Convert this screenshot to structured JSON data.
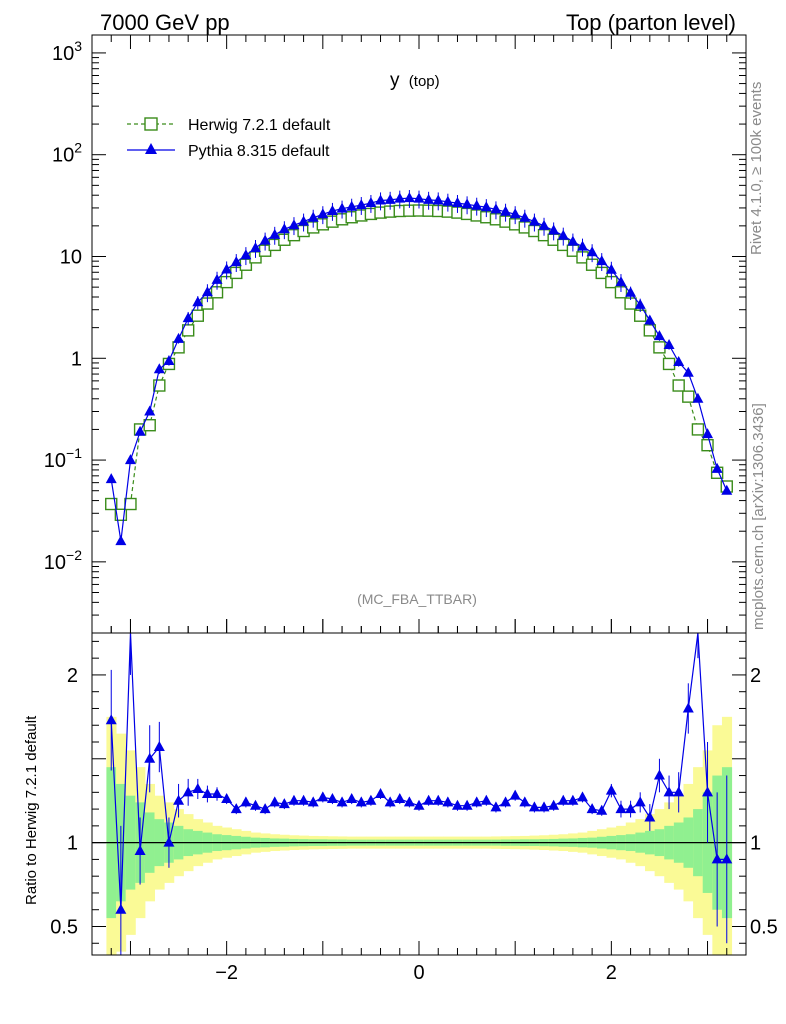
{
  "header": {
    "left": "7000 GeV pp",
    "right": "Top (parton level)"
  },
  "side": {
    "rivet": "Rivet 4.1.0, ≥ 100k events",
    "source": "mcplots.cern.ch [arXiv:1306.3436]"
  },
  "colors": {
    "herwig": "#3a8c1a",
    "pythia": "#0000e6",
    "band_inner": "#90f090",
    "band_outer": "#fafa96"
  },
  "chart_data": {
    "type": "line",
    "title": "y",
    "title_sub": "(top)",
    "analysis_tag": "(MC_FBA_TTBAR)",
    "xlabel": "",
    "xlim": [
      -3.4,
      3.4
    ],
    "xticks": [
      {
        "v": -2,
        "label": "−2"
      },
      {
        "v": 0,
        "label": "0"
      },
      {
        "v": 2,
        "label": "2"
      }
    ],
    "main": {
      "yscale": "log",
      "ylim": [
        0.002,
        1500
      ],
      "yticks": [
        {
          "v": 1000,
          "base": "10",
          "exp": "3"
        },
        {
          "v": 100,
          "base": "10",
          "exp": "2"
        },
        {
          "v": 10,
          "base": "10",
          "exp": ""
        },
        {
          "v": 1,
          "base": "1",
          "exp": ""
        },
        {
          "v": 0.1,
          "base": "10",
          "exp": "−1"
        },
        {
          "v": 0.01,
          "base": "10",
          "exp": "−2"
        }
      ]
    },
    "ratio": {
      "ylabel": "Ratio to Herwig 7.2.1 default",
      "ylim": [
        0.33,
        2.25
      ],
      "yticks": [
        {
          "v": 2,
          "label": "2"
        },
        {
          "v": 1,
          "label": "1"
        },
        {
          "v": 0.5,
          "label": "0.5"
        }
      ]
    },
    "legend": {
      "position": "top-left",
      "entries": [
        {
          "name": "Herwig 7.2.1 default",
          "marker": "open-square",
          "style": "dashed"
        },
        {
          "name": "Pythia 8.315 default",
          "marker": "filled-triangle",
          "style": "solid"
        }
      ]
    },
    "x": [
      -3.2,
      -3.1,
      -3.0,
      -2.9,
      -2.8,
      -2.7,
      -2.6,
      -2.5,
      -2.4,
      -2.3,
      -2.2,
      -2.1,
      -2.0,
      -1.9,
      -1.8,
      -1.7,
      -1.6,
      -1.5,
      -1.4,
      -1.3,
      -1.2,
      -1.1,
      -1.0,
      -0.9,
      -0.8,
      -0.7,
      -0.6,
      -0.5,
      -0.4,
      -0.3,
      -0.2,
      -0.1,
      0.0,
      0.1,
      0.2,
      0.3,
      0.4,
      0.5,
      0.6,
      0.7,
      0.8,
      0.9,
      1.0,
      1.1,
      1.2,
      1.3,
      1.4,
      1.5,
      1.6,
      1.7,
      1.8,
      1.9,
      2.0,
      2.1,
      2.2,
      2.3,
      2.4,
      2.5,
      2.6,
      2.7,
      2.8,
      2.9,
      3.0,
      3.1,
      3.2
    ],
    "series": [
      {
        "name": "Herwig 7.2.1 default",
        "values": [
          0.037,
          0.029,
          0.037,
          0.2,
          0.22,
          0.54,
          0.88,
          1.28,
          1.88,
          2.62,
          3.45,
          4.45,
          5.6,
          6.9,
          8.3,
          9.8,
          11.4,
          13.0,
          14.6,
          16.2,
          17.8,
          19.3,
          20.7,
          22.0,
          23.2,
          24.3,
          25.3,
          26.2,
          27.0,
          27.6,
          28.0,
          28.2,
          28.3,
          28.2,
          28.0,
          27.6,
          27.0,
          26.2,
          25.3,
          24.3,
          23.2,
          22.0,
          20.7,
          19.3,
          17.8,
          16.2,
          14.6,
          13.0,
          11.4,
          9.8,
          8.3,
          6.9,
          5.6,
          4.45,
          3.45,
          2.62,
          1.88,
          1.28,
          0.88,
          0.54,
          0.42,
          0.2,
          0.14,
          0.075,
          0.055
        ],
        "errors": [
          0.018,
          0.015,
          0.015,
          0.04,
          0.04,
          0.06,
          0.05,
          0.06,
          0.07,
          0.08,
          0.1,
          0.1,
          0.1,
          0.1,
          0.1,
          0.1,
          0.1,
          0.1,
          0.1,
          0.1,
          0.1,
          0.1,
          0.1,
          0.1,
          0.1,
          0.1,
          0.1,
          0.1,
          0.1,
          0.1,
          0.1,
          0.1,
          0.1,
          0.1,
          0.1,
          0.1,
          0.1,
          0.1,
          0.1,
          0.1,
          0.1,
          0.1,
          0.1,
          0.1,
          0.1,
          0.1,
          0.1,
          0.1,
          0.1,
          0.1,
          0.1,
          0.1,
          0.1,
          0.1,
          0.1,
          0.08,
          0.07,
          0.06,
          0.05,
          0.06,
          0.05,
          0.04,
          0.03,
          0.02,
          0.018
        ]
      },
      {
        "name": "Pythia 8.315 default",
        "values": [
          0.065,
          0.016,
          0.1,
          0.19,
          0.3,
          0.78,
          0.94,
          1.55,
          2.48,
          3.55,
          4.45,
          5.9,
          7.45,
          8.8,
          10.3,
          12.1,
          14.3,
          16.3,
          18.5,
          20.3,
          22.0,
          24.0,
          26.0,
          28.0,
          29.5,
          30.8,
          32.0,
          33.5,
          35.5,
          36.0,
          37.0,
          37.5,
          37.0,
          36.0,
          35.5,
          34.5,
          33.5,
          32.5,
          31.5,
          30.5,
          29.0,
          27.5,
          26.0,
          24.0,
          22.0,
          20.0,
          18.0,
          16.0,
          14.0,
          12.5,
          11.0,
          9.0,
          7.4,
          5.6,
          4.4,
          3.35,
          2.35,
          1.65,
          1.35,
          0.92,
          0.72,
          0.4,
          0.18,
          0.082,
          0.05
        ],
        "errors": [
          0.035,
          0.014,
          0.03,
          0.04,
          0.06,
          0.1,
          0.1,
          0.1,
          0.15,
          0.15,
          0.2,
          0.2,
          0.2,
          0.2,
          0.2,
          0.2,
          0.2,
          0.2,
          0.2,
          0.2,
          0.2,
          0.2,
          0.2,
          0.2,
          0.2,
          0.2,
          0.2,
          0.2,
          0.2,
          0.2,
          0.2,
          0.2,
          0.2,
          0.2,
          0.2,
          0.2,
          0.2,
          0.2,
          0.2,
          0.2,
          0.2,
          0.2,
          0.2,
          0.2,
          0.2,
          0.2,
          0.2,
          0.2,
          0.2,
          0.2,
          0.2,
          0.2,
          0.2,
          0.2,
          0.15,
          0.15,
          0.1,
          0.1,
          0.1,
          0.1,
          0.08,
          0.06,
          0.04,
          0.025,
          0.02
        ]
      }
    ],
    "ratio_pythia": [
      1.73,
      0.6,
      2.3,
      0.95,
      1.5,
      1.57,
      1.0,
      1.25,
      1.3,
      1.32,
      1.29,
      1.29,
      1.26,
      1.2,
      1.24,
      1.22,
      1.2,
      1.24,
      1.23,
      1.25,
      1.25,
      1.24,
      1.27,
      1.26,
      1.24,
      1.26,
      1.24,
      1.25,
      1.29,
      1.24,
      1.26,
      1.24,
      1.22,
      1.25,
      1.25,
      1.24,
      1.22,
      1.22,
      1.24,
      1.25,
      1.21,
      1.24,
      1.28,
      1.24,
      1.21,
      1.21,
      1.22,
      1.25,
      1.25,
      1.27,
      1.2,
      1.19,
      1.31,
      1.2,
      1.2,
      1.24,
      1.15,
      1.4,
      1.3,
      1.3,
      1.8,
      2.3,
      1.3,
      0.9,
      0.9
    ],
    "ratio_pythia_err": [
      0.3,
      0.5,
      0.3,
      0.2,
      0.2,
      0.15,
      0.15,
      0.1,
      0.08,
      0.06,
      0.05,
      0.04,
      0.03,
      0.03,
      0.03,
      0.03,
      0.03,
      0.03,
      0.03,
      0.03,
      0.03,
      0.03,
      0.03,
      0.03,
      0.03,
      0.03,
      0.03,
      0.03,
      0.03,
      0.03,
      0.03,
      0.03,
      0.03,
      0.03,
      0.03,
      0.03,
      0.03,
      0.03,
      0.03,
      0.03,
      0.03,
      0.03,
      0.03,
      0.03,
      0.03,
      0.03,
      0.03,
      0.03,
      0.03,
      0.03,
      0.03,
      0.03,
      0.04,
      0.05,
      0.05,
      0.06,
      0.08,
      0.1,
      0.1,
      0.12,
      0.15,
      0.2,
      0.3,
      0.4,
      0.5
    ],
    "ratio_band_inner": [
      0.45,
      0.35,
      0.28,
      0.24,
      0.18,
      0.14,
      0.12,
      0.1,
      0.08,
      0.07,
      0.06,
      0.05,
      0.045,
      0.04,
      0.035,
      0.03,
      0.028,
      0.025,
      0.024,
      0.022,
      0.021,
      0.02,
      0.02,
      0.019,
      0.019,
      0.018,
      0.018,
      0.018,
      0.018,
      0.018,
      0.018,
      0.018,
      0.018,
      0.018,
      0.018,
      0.018,
      0.018,
      0.018,
      0.018,
      0.018,
      0.018,
      0.019,
      0.019,
      0.02,
      0.02,
      0.021,
      0.022,
      0.024,
      0.025,
      0.028,
      0.03,
      0.035,
      0.04,
      0.045,
      0.05,
      0.06,
      0.07,
      0.08,
      0.1,
      0.12,
      0.15,
      0.2,
      0.3,
      0.4,
      0.45
    ],
    "ratio_band_outer": [
      0.75,
      0.65,
      0.55,
      0.45,
      0.35,
      0.28,
      0.24,
      0.2,
      0.17,
      0.14,
      0.12,
      0.1,
      0.09,
      0.08,
      0.07,
      0.06,
      0.055,
      0.05,
      0.047,
      0.044,
      0.042,
      0.04,
      0.039,
      0.038,
      0.037,
      0.036,
      0.036,
      0.036,
      0.036,
      0.036,
      0.036,
      0.036,
      0.036,
      0.036,
      0.036,
      0.036,
      0.036,
      0.036,
      0.036,
      0.036,
      0.037,
      0.038,
      0.039,
      0.04,
      0.042,
      0.044,
      0.047,
      0.05,
      0.055,
      0.06,
      0.07,
      0.08,
      0.09,
      0.1,
      0.12,
      0.14,
      0.17,
      0.2,
      0.24,
      0.28,
      0.35,
      0.45,
      0.55,
      0.7,
      0.75
    ]
  }
}
